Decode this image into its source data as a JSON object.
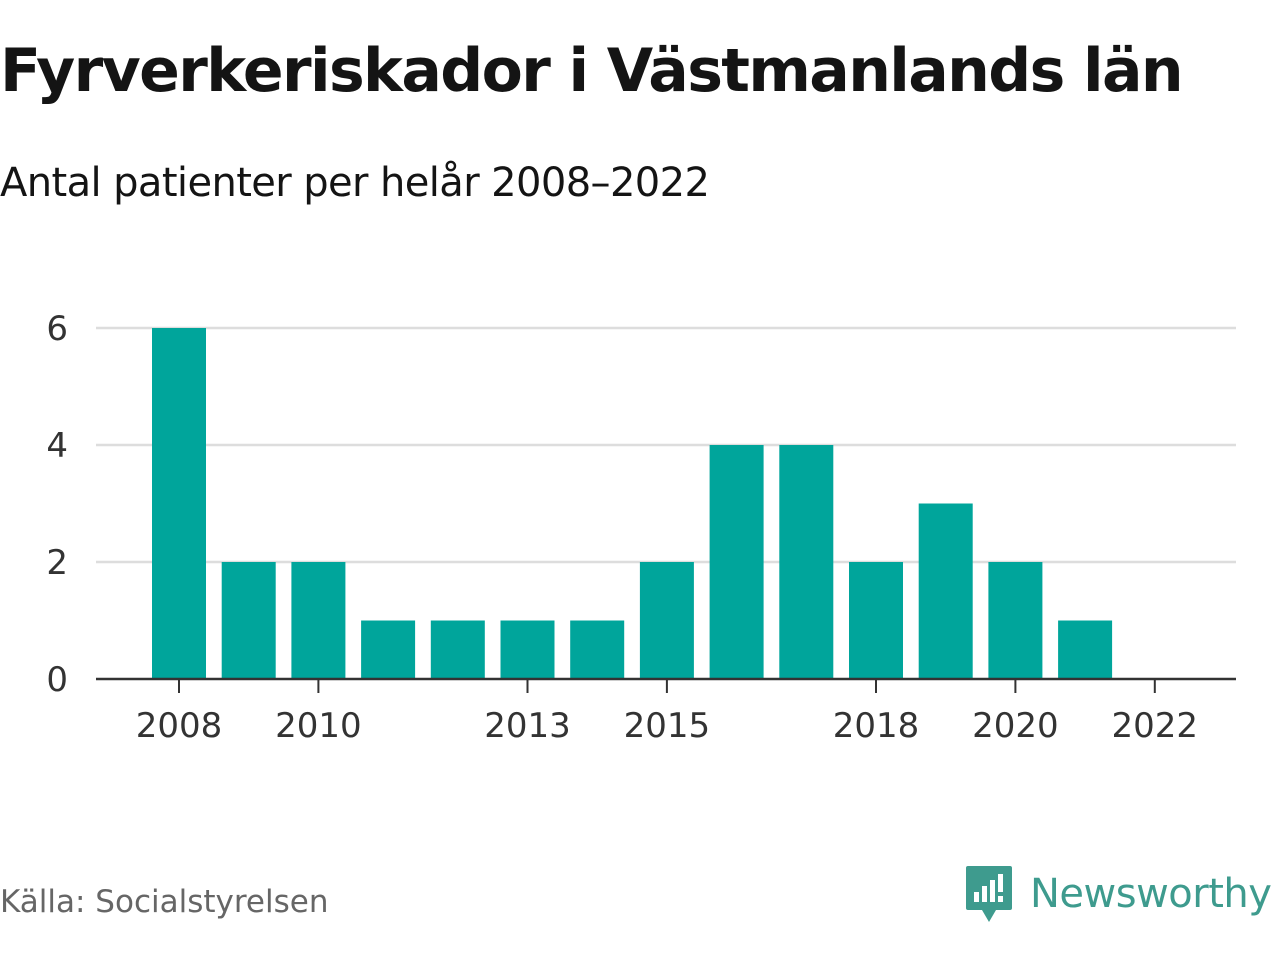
{
  "title": "Fyrverkeriskador i Västmanlands län",
  "subtitle": "Antal patienter per helår 2008–2022",
  "source": "Källa: Socialstyrelsen",
  "brand": {
    "name": "Newsworthy",
    "icon": "newsworthy-logo-icon",
    "color": "#3e9b8e"
  },
  "chart_data": {
    "type": "bar",
    "categories": [
      "2008",
      "2009",
      "2010",
      "2011",
      "2012",
      "2013",
      "2014",
      "2015",
      "2016",
      "2017",
      "2018",
      "2019",
      "2020",
      "2021",
      "2022"
    ],
    "values": [
      6,
      2,
      2,
      1,
      1,
      1,
      1,
      2,
      4,
      4,
      2,
      3,
      2,
      1,
      0
    ],
    "x_tick_labels": [
      "2008",
      "2010",
      "2013",
      "2015",
      "2018",
      "2020",
      "2022"
    ],
    "y_ticks": [
      0,
      2,
      4,
      6
    ],
    "ylim": [
      0,
      6
    ],
    "xlabel": "",
    "ylabel": "",
    "grid": true,
    "bar_color": "#00a59b"
  }
}
